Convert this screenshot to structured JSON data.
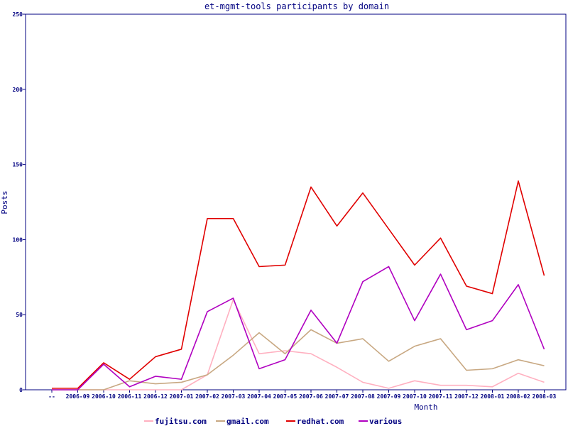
{
  "chart_data": {
    "type": "line",
    "title": "et-mgmt-tools participants by domain",
    "xlabel": "Month",
    "ylabel": "Posts",
    "ylim": [
      0,
      250
    ],
    "yticks": [
      0,
      50,
      100,
      150,
      200,
      250
    ],
    "grid": false,
    "legend_position": "bottom",
    "categories": [
      "--",
      "2006-09",
      "2006-10",
      "2006-11",
      "2006-12",
      "2007-01",
      "2007-02",
      "2007-03",
      "2007-04",
      "2007-05",
      "2007-06",
      "2007-07",
      "2007-08",
      "2007-09",
      "2007-10",
      "2007-11",
      "2007-12",
      "2008-01",
      "2008-02",
      "2008-03"
    ],
    "series": [
      {
        "name": "fujitsu.com",
        "color": "#ffb0c0",
        "values": [
          0,
          0,
          0,
          0,
          0,
          0,
          10,
          60,
          24,
          26,
          24,
          15,
          5,
          1,
          6,
          3,
          3,
          2,
          11,
          5
        ]
      },
      {
        "name": "gmail.com",
        "color": "#c8a882",
        "values": [
          0,
          0,
          0,
          6,
          4,
          5,
          10,
          23,
          38,
          24,
          40,
          31,
          34,
          19,
          29,
          34,
          13,
          14,
          20,
          16
        ]
      },
      {
        "name": "redhat.com",
        "color": "#e00000",
        "values": [
          1,
          1,
          18,
          7,
          22,
          27,
          114,
          114,
          82,
          83,
          135,
          109,
          131,
          107,
          83,
          101,
          69,
          64,
          139,
          76
        ]
      },
      {
        "name": "various",
        "color": "#b000c0",
        "values": [
          0,
          0,
          17,
          2,
          9,
          7,
          52,
          61,
          14,
          20,
          53,
          31,
          72,
          82,
          46,
          77,
          40,
          46,
          70,
          27
        ]
      }
    ]
  }
}
